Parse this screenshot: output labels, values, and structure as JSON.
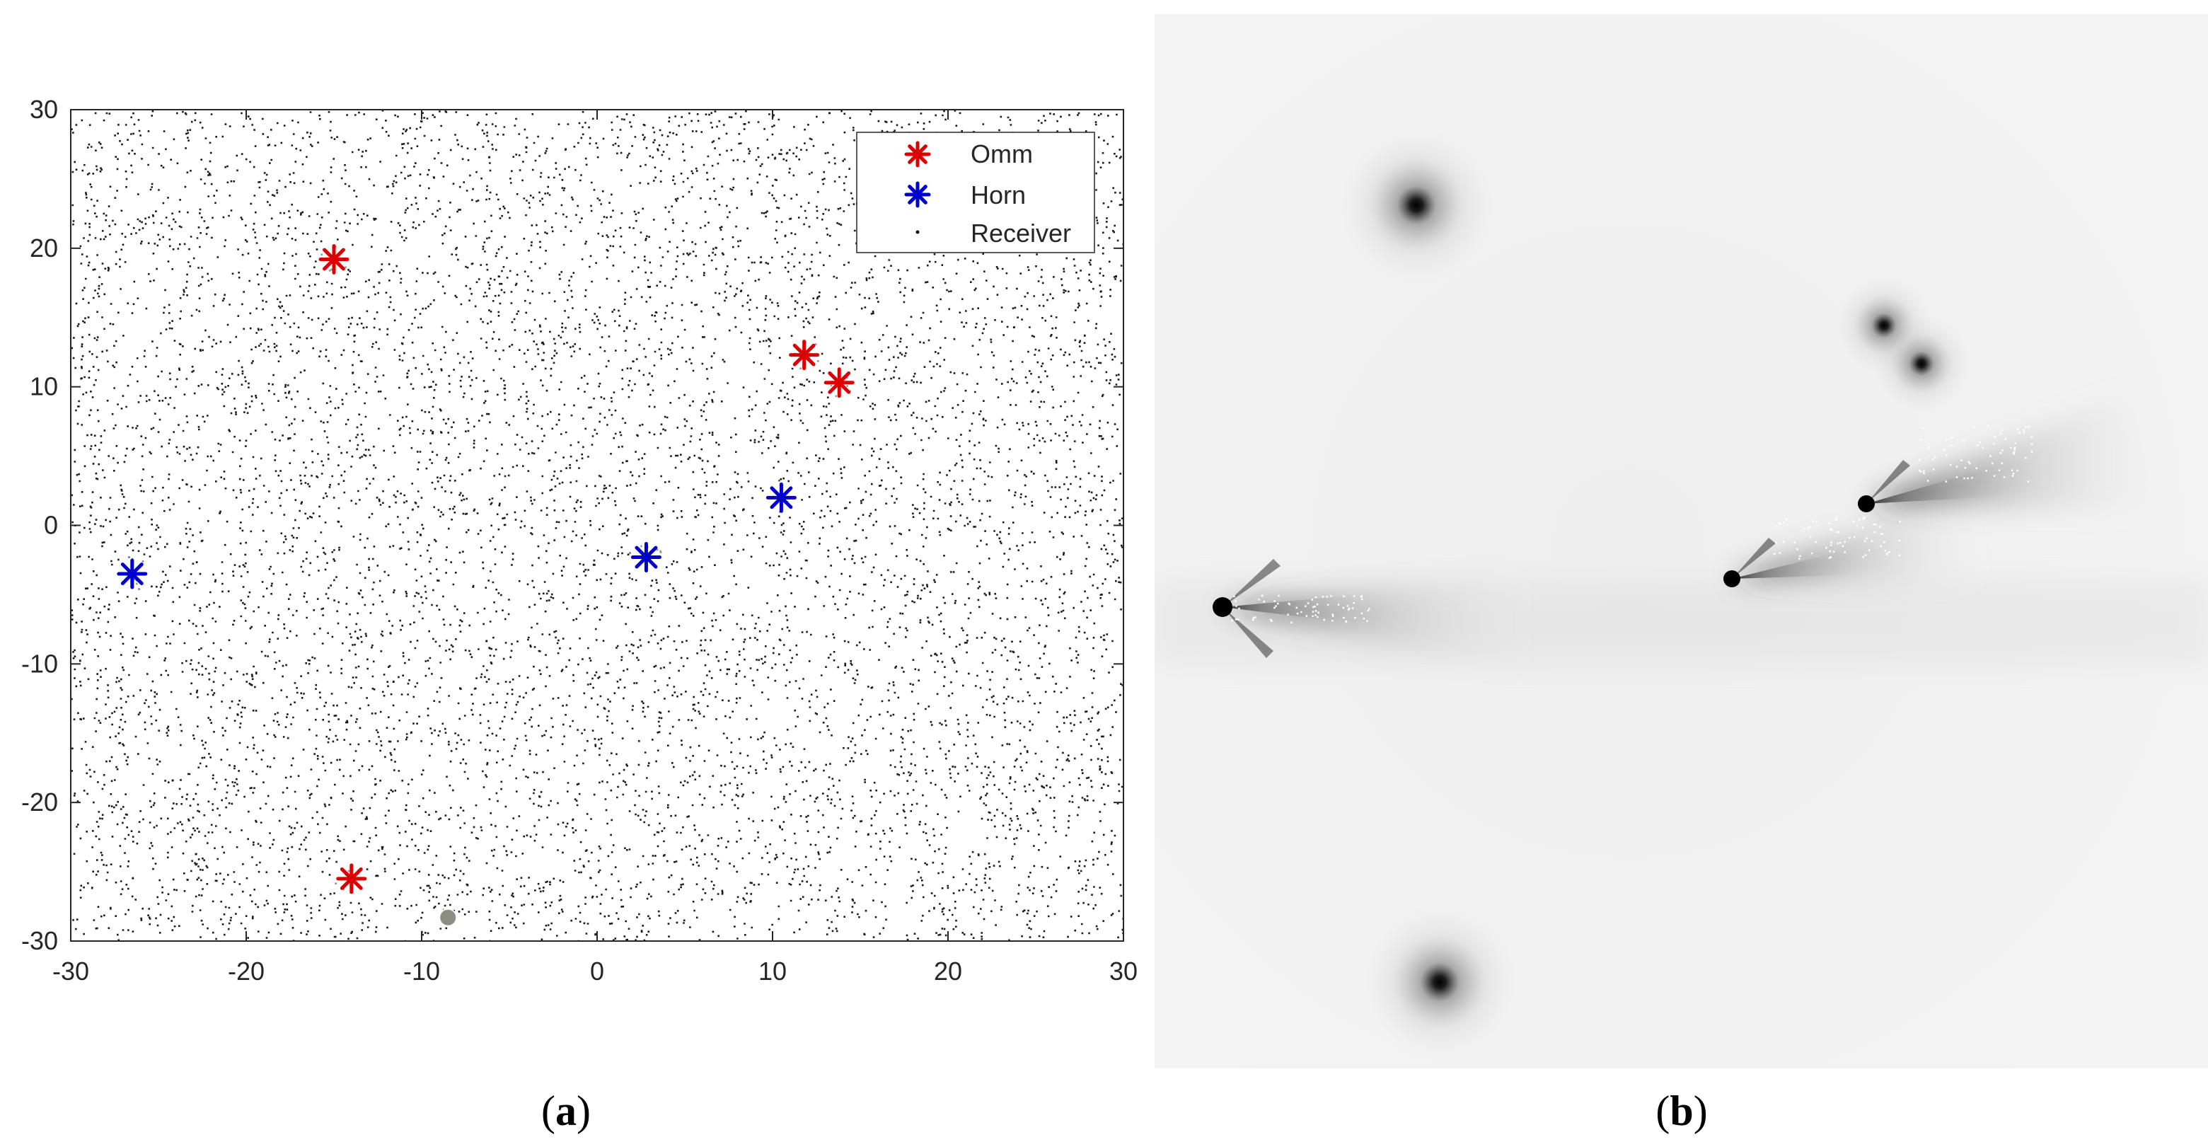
{
  "chart_data": [
    {
      "type": "scatter",
      "panel_label": "a",
      "xlim": [
        -30,
        30
      ],
      "ylim": [
        -30,
        30
      ],
      "x_ticks": [
        "-30",
        "-20",
        "-10",
        "0",
        "10",
        "20",
        "30"
      ],
      "y_ticks": [
        "30",
        "20",
        "10",
        "0",
        "-10",
        "-20",
        "-30"
      ],
      "x_tick_values": [
        -30,
        -20,
        -10,
        0,
        10,
        20,
        30
      ],
      "y_tick_values": [
        30,
        20,
        10,
        0,
        -10,
        -20,
        -30
      ],
      "grid": false,
      "legend_position": "top-right",
      "series": [
        {
          "name": "Omm",
          "marker": "asterisk",
          "color": "#dd0000",
          "x": [
            -15,
            11.8,
            13.8,
            -14
          ],
          "y": [
            19.2,
            12.3,
            10.3,
            -25.5
          ]
        },
        {
          "name": "Horn",
          "marker": "asterisk",
          "color": "#0000cc",
          "x": [
            -26.5,
            2.8,
            10.5
          ],
          "y": [
            -3.5,
            -2.3,
            2
          ]
        },
        {
          "name": "Receiver",
          "marker": "dot",
          "color": "#111111",
          "distribution": "dense uniform random points over the full axes area"
        }
      ],
      "annotations": [
        {
          "marker": "circle",
          "color": "#8a8f80",
          "x": -8.5,
          "y": -28.3
        }
      ]
    },
    {
      "type": "heatmap",
      "panel_label": "b",
      "colormap": "grayscale",
      "description": ""
    }
  ]
}
